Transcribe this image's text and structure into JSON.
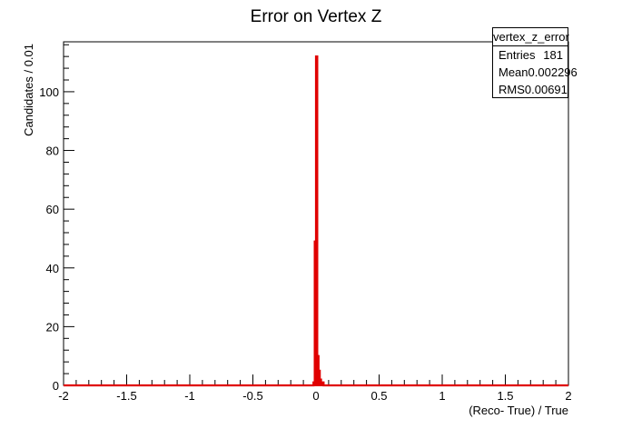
{
  "chart_data": {
    "type": "histogram",
    "title": "Error on Vertex Z",
    "xlabel": "(Reco- True) / True",
    "ylabel": "Candidates / 0.01",
    "xlim": [
      -2,
      2
    ],
    "ylim": [
      0,
      117
    ],
    "bin_width": 0.01,
    "x_ticks": [
      "-2",
      "-1.5",
      "-1",
      "-0.5",
      "0",
      "0.5",
      "1",
      "1.5",
      "2"
    ],
    "y_ticks": [
      "0",
      "20",
      "40",
      "60",
      "80",
      "100"
    ],
    "bins": [
      {
        "x": -0.02,
        "y": 1
      },
      {
        "x": -0.01,
        "y": 49
      },
      {
        "x": 0.0,
        "y": 112
      },
      {
        "x": 0.01,
        "y": 10
      },
      {
        "x": 0.02,
        "y": 5
      },
      {
        "x": 0.03,
        "y": 2
      },
      {
        "x": 0.04,
        "y": 1
      },
      {
        "x": 0.05,
        "y": 1
      }
    ],
    "line_color": "#e00000",
    "stats": {
      "name": "vertex_z_error",
      "rows": [
        {
          "label": "Entries",
          "value": "181"
        },
        {
          "label": "Mean",
          "value": "0.002296"
        },
        {
          "label": "RMS",
          "value": "0.00691"
        }
      ]
    }
  }
}
